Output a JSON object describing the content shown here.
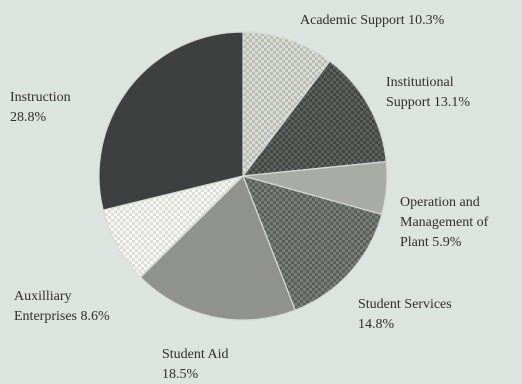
{
  "chart_data": {
    "type": "pie",
    "title": "",
    "slices": [
      {
        "label_lines": [
          "Academic Support 10.3%"
        ],
        "value": 10.3,
        "color": "#d0d2cc",
        "pattern": "check-light"
      },
      {
        "label_lines": [
          "Institutional",
          "Support 13.1%"
        ],
        "value": 13.1,
        "color": "#555a56",
        "pattern": "check-dark"
      },
      {
        "label_lines": [
          "Operation and",
          "Management of",
          "Plant 5.9%"
        ],
        "value": 5.9,
        "color": "#a9aca6",
        "pattern": "solid"
      },
      {
        "label_lines": [
          "Student Services",
          "14.8%"
        ],
        "value": 14.8,
        "color": "#6c706b",
        "pattern": "check-mid"
      },
      {
        "label_lines": [
          "Student Aid",
          "18.5%"
        ],
        "value": 18.5,
        "color": "#8f928d",
        "pattern": "solid"
      },
      {
        "label_lines": [
          "Auxilliary",
          "Enterprises 8.6%"
        ],
        "value": 8.6,
        "color": "#efefeb",
        "pattern": "check-white"
      },
      {
        "label_lines": [
          "Instruction",
          "28.8%"
        ],
        "value": 28.8,
        "color": "#3d403e",
        "pattern": "solid"
      }
    ],
    "start_angle": "12 o'clock",
    "direction": "clockwise",
    "legend": "none",
    "labels": "outside"
  }
}
